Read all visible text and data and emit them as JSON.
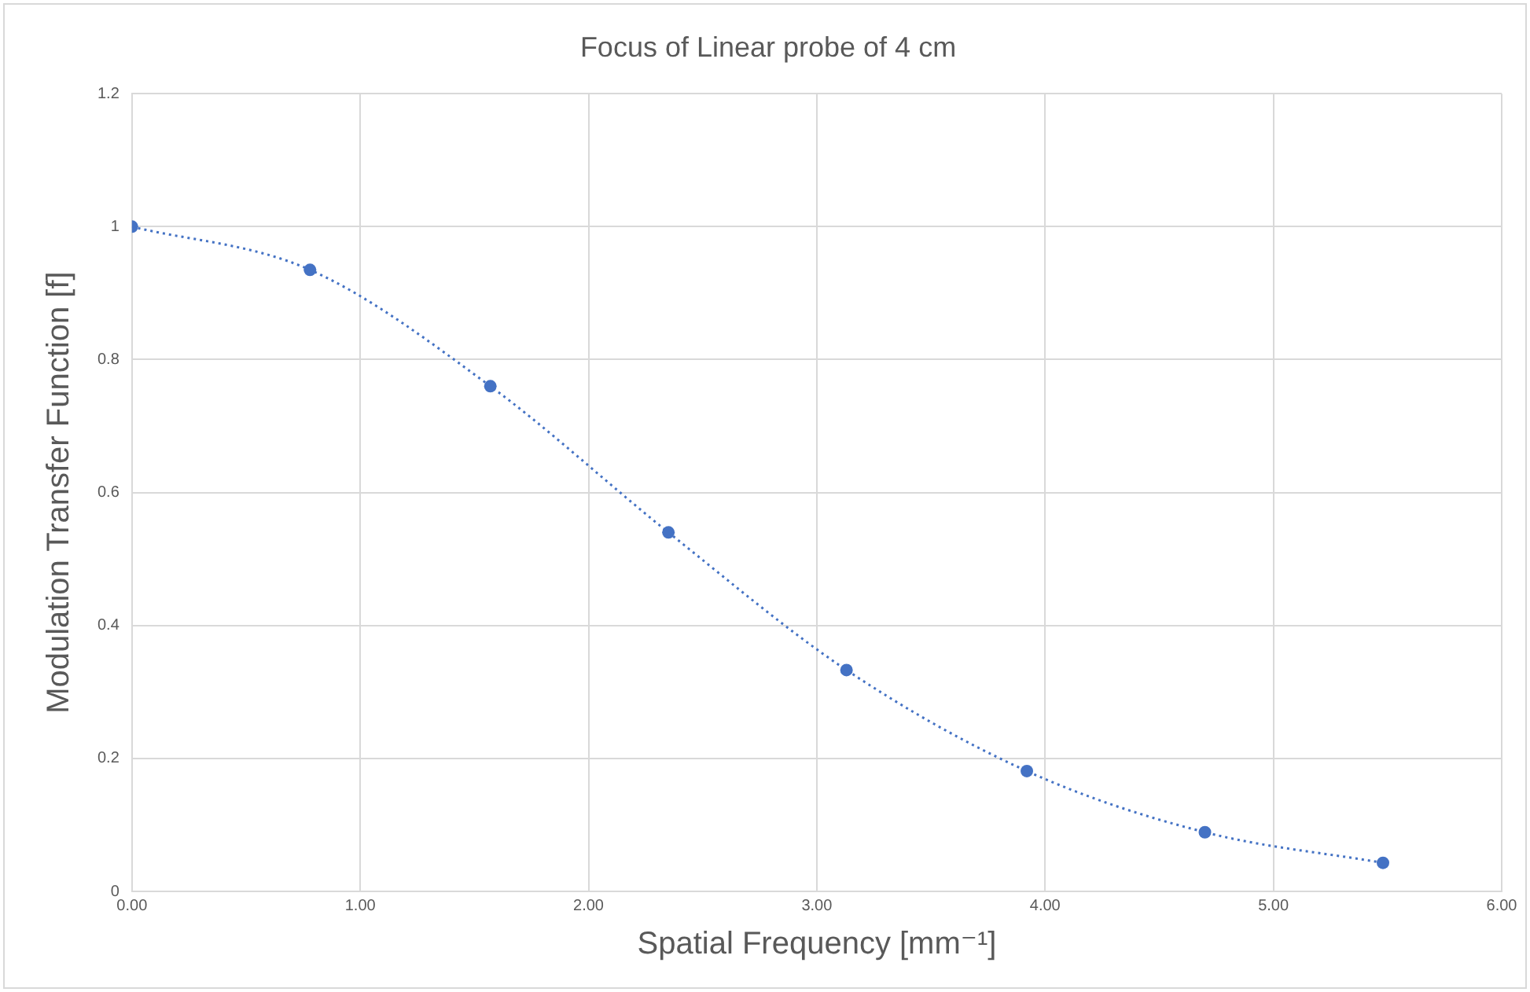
{
  "chart_data": {
    "type": "line",
    "title": "Focus of Linear probe of 4 cm",
    "xlabel": "Spatial Frequency [mm⁻¹]",
    "ylabel": "Modulation Transfer Function [f]",
    "x": [
      0,
      0.78,
      1.57,
      2.35,
      3.13,
      3.92,
      4.7,
      5.48
    ],
    "series": [
      {
        "color": "#4472c4",
        "values": [
          1.0,
          0.935,
          0.76,
          0.54,
          0.333,
          0.181,
          0.089,
          0.043
        ]
      }
    ],
    "xlim": [
      0,
      6
    ],
    "xticks": [
      {
        "value": 0,
        "label": "0.00"
      },
      {
        "value": 1,
        "label": "1.00"
      },
      {
        "value": 2,
        "label": "2.00"
      },
      {
        "value": 3,
        "label": "3.00"
      },
      {
        "value": 4,
        "label": "4.00"
      },
      {
        "value": 5,
        "label": "5.00"
      },
      {
        "value": 6,
        "label": "6.00"
      }
    ],
    "ylim": [
      0,
      1.2
    ],
    "yticks": [
      0,
      0.2,
      0.4,
      0.6,
      0.8,
      1,
      1.2
    ],
    "grid": true,
    "legend": false,
    "marker": "circle",
    "line_style": "dotted"
  }
}
